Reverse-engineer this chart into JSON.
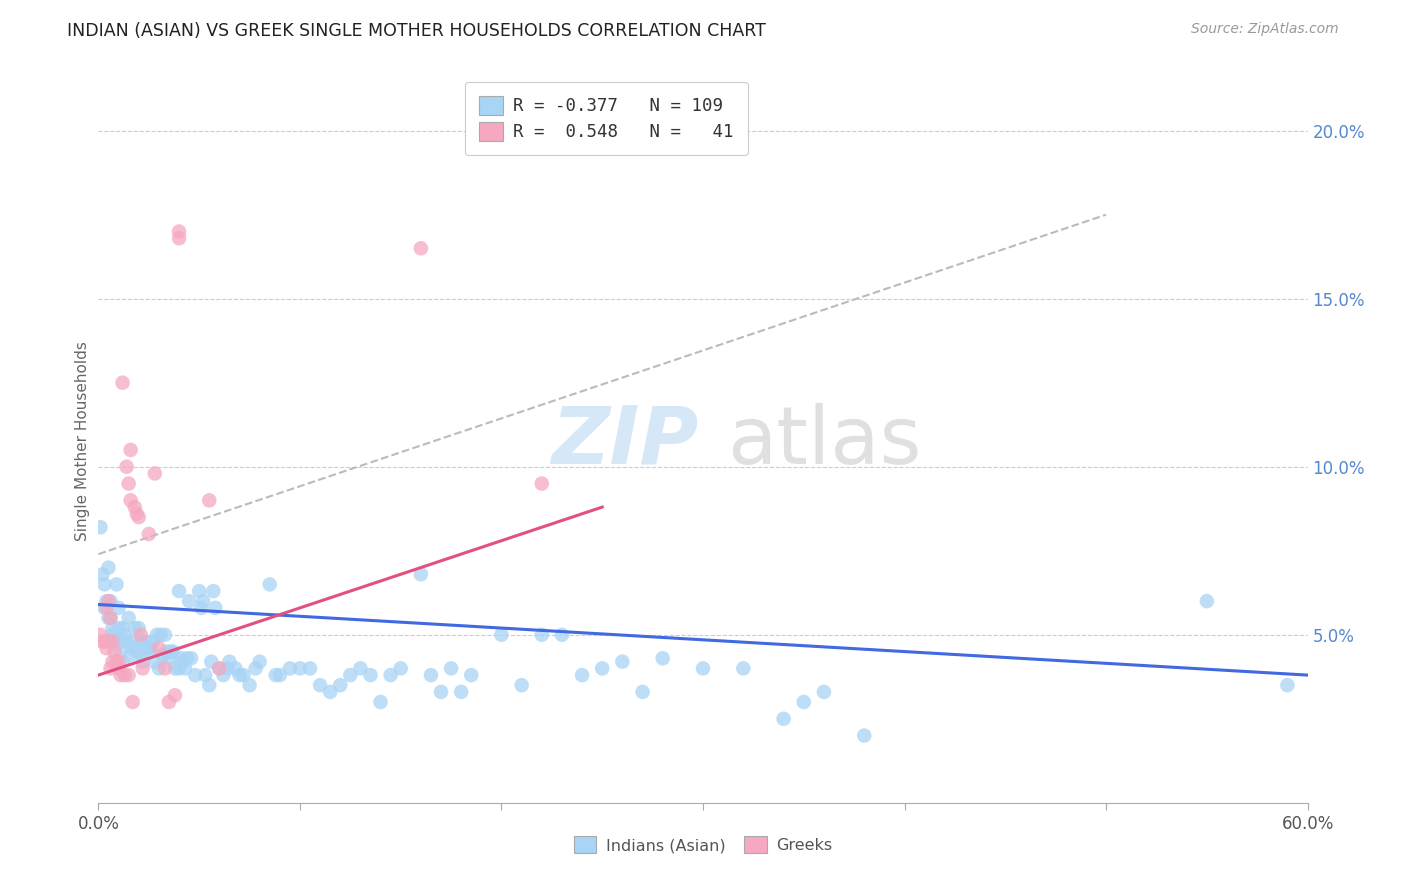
{
  "title": "INDIAN (ASIAN) VS GREEK SINGLE MOTHER HOUSEHOLDS CORRELATION CHART",
  "source": "Source: ZipAtlas.com",
  "ylabel": "Single Mother Households",
  "legend_blue_r": "-0.377",
  "legend_blue_n": "109",
  "legend_pink_r": "0.548",
  "legend_pink_n": "41",
  "xmin": 0.0,
  "xmax": 0.6,
  "ymin": 0.0,
  "ymax": 0.215,
  "blue_color": "#a8d4f5",
  "pink_color": "#f5a8c0",
  "blue_line_color": "#4169E1",
  "pink_line_color": "#e05080",
  "blue_scatter": [
    [
      0.001,
      0.082
    ],
    [
      0.002,
      0.068
    ],
    [
      0.003,
      0.065
    ],
    [
      0.003,
      0.058
    ],
    [
      0.004,
      0.06
    ],
    [
      0.005,
      0.055
    ],
    [
      0.005,
      0.07
    ],
    [
      0.006,
      0.06
    ],
    [
      0.006,
      0.055
    ],
    [
      0.007,
      0.052
    ],
    [
      0.007,
      0.05
    ],
    [
      0.008,
      0.048
    ],
    [
      0.008,
      0.05
    ],
    [
      0.009,
      0.065
    ],
    [
      0.01,
      0.058
    ],
    [
      0.01,
      0.052
    ],
    [
      0.011,
      0.048
    ],
    [
      0.011,
      0.045
    ],
    [
      0.012,
      0.052
    ],
    [
      0.012,
      0.042
    ],
    [
      0.013,
      0.05
    ],
    [
      0.014,
      0.048
    ],
    [
      0.015,
      0.055
    ],
    [
      0.016,
      0.048
    ],
    [
      0.016,
      0.044
    ],
    [
      0.017,
      0.046
    ],
    [
      0.018,
      0.052
    ],
    [
      0.019,
      0.045
    ],
    [
      0.02,
      0.052
    ],
    [
      0.021,
      0.048
    ],
    [
      0.022,
      0.044
    ],
    [
      0.022,
      0.042
    ],
    [
      0.023,
      0.048
    ],
    [
      0.024,
      0.046
    ],
    [
      0.025,
      0.046
    ],
    [
      0.026,
      0.046
    ],
    [
      0.027,
      0.048
    ],
    [
      0.028,
      0.042
    ],
    [
      0.029,
      0.05
    ],
    [
      0.03,
      0.04
    ],
    [
      0.031,
      0.05
    ],
    [
      0.032,
      0.044
    ],
    [
      0.033,
      0.05
    ],
    [
      0.034,
      0.045
    ],
    [
      0.035,
      0.043
    ],
    [
      0.036,
      0.045
    ],
    [
      0.037,
      0.045
    ],
    [
      0.038,
      0.04
    ],
    [
      0.04,
      0.04
    ],
    [
      0.04,
      0.063
    ],
    [
      0.041,
      0.043
    ],
    [
      0.042,
      0.042
    ],
    [
      0.043,
      0.04
    ],
    [
      0.044,
      0.043
    ],
    [
      0.045,
      0.06
    ],
    [
      0.046,
      0.043
    ],
    [
      0.048,
      0.038
    ],
    [
      0.05,
      0.063
    ],
    [
      0.051,
      0.058
    ],
    [
      0.052,
      0.06
    ],
    [
      0.053,
      0.038
    ],
    [
      0.055,
      0.035
    ],
    [
      0.056,
      0.042
    ],
    [
      0.057,
      0.063
    ],
    [
      0.058,
      0.058
    ],
    [
      0.06,
      0.04
    ],
    [
      0.062,
      0.038
    ],
    [
      0.064,
      0.04
    ],
    [
      0.065,
      0.042
    ],
    [
      0.068,
      0.04
    ],
    [
      0.07,
      0.038
    ],
    [
      0.072,
      0.038
    ],
    [
      0.075,
      0.035
    ],
    [
      0.078,
      0.04
    ],
    [
      0.08,
      0.042
    ],
    [
      0.085,
      0.065
    ],
    [
      0.088,
      0.038
    ],
    [
      0.09,
      0.038
    ],
    [
      0.095,
      0.04
    ],
    [
      0.1,
      0.04
    ],
    [
      0.105,
      0.04
    ],
    [
      0.11,
      0.035
    ],
    [
      0.115,
      0.033
    ],
    [
      0.12,
      0.035
    ],
    [
      0.125,
      0.038
    ],
    [
      0.13,
      0.04
    ],
    [
      0.135,
      0.038
    ],
    [
      0.14,
      0.03
    ],
    [
      0.145,
      0.038
    ],
    [
      0.15,
      0.04
    ],
    [
      0.16,
      0.068
    ],
    [
      0.165,
      0.038
    ],
    [
      0.17,
      0.033
    ],
    [
      0.175,
      0.04
    ],
    [
      0.18,
      0.033
    ],
    [
      0.185,
      0.038
    ],
    [
      0.2,
      0.05
    ],
    [
      0.21,
      0.035
    ],
    [
      0.22,
      0.05
    ],
    [
      0.23,
      0.05
    ],
    [
      0.24,
      0.038
    ],
    [
      0.25,
      0.04
    ],
    [
      0.26,
      0.042
    ],
    [
      0.27,
      0.033
    ],
    [
      0.28,
      0.043
    ],
    [
      0.3,
      0.04
    ],
    [
      0.32,
      0.04
    ],
    [
      0.34,
      0.025
    ],
    [
      0.35,
      0.03
    ],
    [
      0.36,
      0.033
    ],
    [
      0.38,
      0.02
    ],
    [
      0.55,
      0.06
    ],
    [
      0.59,
      0.035
    ]
  ],
  "pink_scatter": [
    [
      0.001,
      0.05
    ],
    [
      0.002,
      0.048
    ],
    [
      0.003,
      0.048
    ],
    [
      0.004,
      0.058
    ],
    [
      0.004,
      0.046
    ],
    [
      0.005,
      0.06
    ],
    [
      0.005,
      0.048
    ],
    [
      0.006,
      0.04
    ],
    [
      0.006,
      0.055
    ],
    [
      0.007,
      0.048
    ],
    [
      0.007,
      0.042
    ],
    [
      0.008,
      0.045
    ],
    [
      0.009,
      0.042
    ],
    [
      0.01,
      0.04
    ],
    [
      0.01,
      0.042
    ],
    [
      0.011,
      0.038
    ],
    [
      0.012,
      0.125
    ],
    [
      0.013,
      0.038
    ],
    [
      0.014,
      0.1
    ],
    [
      0.015,
      0.038
    ],
    [
      0.015,
      0.095
    ],
    [
      0.016,
      0.105
    ],
    [
      0.016,
      0.09
    ],
    [
      0.017,
      0.03
    ],
    [
      0.018,
      0.088
    ],
    [
      0.019,
      0.086
    ],
    [
      0.02,
      0.085
    ],
    [
      0.021,
      0.05
    ],
    [
      0.022,
      0.04
    ],
    [
      0.025,
      0.08
    ],
    [
      0.028,
      0.098
    ],
    [
      0.03,
      0.046
    ],
    [
      0.033,
      0.04
    ],
    [
      0.035,
      0.03
    ],
    [
      0.038,
      0.032
    ],
    [
      0.04,
      0.168
    ],
    [
      0.04,
      0.17
    ],
    [
      0.055,
      0.09
    ],
    [
      0.06,
      0.04
    ],
    [
      0.16,
      0.165
    ],
    [
      0.22,
      0.095
    ]
  ],
  "blue_trend_x": [
    0.0,
    0.6
  ],
  "blue_trend_y": [
    0.059,
    0.038
  ],
  "pink_trend_x": [
    0.0,
    0.25
  ],
  "pink_trend_y": [
    0.038,
    0.088
  ],
  "dashed_trend_x": [
    0.0,
    0.5
  ],
  "dashed_trend_y": [
    0.074,
    0.175
  ],
  "yticks": [
    0.05,
    0.1,
    0.15,
    0.2
  ],
  "xtick_left": "0.0%",
  "xtick_right": "60.0%"
}
